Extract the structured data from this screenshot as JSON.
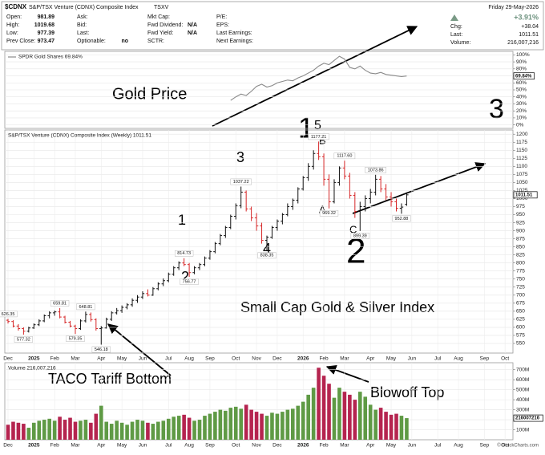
{
  "header": {
    "symbol": "$CDNX",
    "name": "S&P/TSX Venture (CDNX) Composite Index",
    "exchange": "TSXV",
    "date": "Friday 29-May-2026",
    "change_pct": "+3.91%",
    "copyright": "© StockCharts.com",
    "columns": [
      [
        {
          "label": "Open:",
          "value": "981.89"
        },
        {
          "label": "High:",
          "value": "1019.68"
        },
        {
          "label": "Low:",
          "value": "977.39"
        },
        {
          "label": "Prev Close:",
          "value": "973.47"
        }
      ],
      [
        {
          "label": "Ask:"
        },
        {
          "label": "Bid:"
        },
        {
          "label": "Last:"
        },
        {
          "label": "Optionable:",
          "value": "no"
        }
      ],
      [
        {
          "label": "Mkt Cap:"
        },
        {
          "label": "Fwd Dividend:",
          "value": "N/A"
        },
        {
          "label": "Fwd Yield:",
          "value": "N/A"
        },
        {
          "label": "SCTR:"
        }
      ],
      [
        {
          "label": "P/E:"
        },
        {
          "label": "EPS:"
        },
        {
          "label": "Last Earnings:"
        },
        {
          "label": "Next Earnings:"
        }
      ]
    ],
    "quote": [
      {
        "label": "Chg:",
        "value": "+38.04"
      },
      {
        "label": "Last:",
        "value": "1011.51"
      },
      {
        "label": "Volume:",
        "value": "216,007,216"
      }
    ]
  },
  "annotations": [
    "Gold Price",
    "3",
    "1",
    "5",
    "B",
    "A",
    "C",
    "2",
    "3",
    "4",
    "1",
    "2",
    "Small Cap Gold & Silver Index",
    "TACO Tariff Bottom",
    "Blowoff Top"
  ],
  "chart_data": [
    {
      "type": "line",
      "title": "SPDR Gold Shares 69.84%",
      "color": "#8a8a8a",
      "grid": true,
      "last_label": "69.84%",
      "ylim": [
        -5,
        105
      ],
      "yticks": [
        {
          "value": 0,
          "label": "0%"
        },
        {
          "value": 10,
          "label": "10%"
        },
        {
          "value": 20,
          "label": "20%"
        },
        {
          "value": 30,
          "label": "30%"
        },
        {
          "value": 40,
          "label": "40%"
        },
        {
          "value": 50,
          "label": "50%"
        },
        {
          "value": 60,
          "label": "60%"
        },
        {
          "value": 70,
          "label": "70%"
        },
        {
          "value": 80,
          "label": "80%"
        },
        {
          "value": 90,
          "label": "90%"
        },
        {
          "value": 100,
          "label": "100%"
        }
      ],
      "values": [
        null,
        null,
        null,
        null,
        null,
        null,
        null,
        null,
        null,
        null,
        null,
        null,
        null,
        null,
        null,
        null,
        null,
        null,
        null,
        null,
        null,
        null,
        null,
        null,
        null,
        null,
        null,
        null,
        null,
        null,
        null,
        null,
        null,
        null,
        null,
        null,
        null,
        null,
        null,
        null,
        null,
        null,
        null,
        35,
        40,
        44,
        42,
        48,
        55,
        58,
        54,
        56,
        60,
        62,
        64,
        63,
        67,
        70,
        74,
        78,
        84,
        88,
        86,
        92,
        98,
        94,
        82,
        80,
        84,
        78,
        74,
        73,
        75,
        72,
        71,
        70,
        69,
        69.84,
        null,
        null,
        null,
        null,
        null,
        null,
        null,
        null,
        null,
        null,
        null,
        null,
        null,
        null,
        null,
        null,
        null,
        null,
        null,
        null,
        null
      ]
    },
    {
      "type": "ohlc",
      "title": "S&P/TSX Venture (CDNX) Composite Index (Weekly) 1011.51",
      "up_color": "#111111",
      "down_color": "#d62728",
      "grid": true,
      "last_label": "1011.51",
      "ylim": [
        520,
        1213
      ],
      "yticks": [
        550,
        575,
        600,
        625,
        650,
        675,
        700,
        725,
        750,
        775,
        800,
        825,
        850,
        875,
        900,
        925,
        950,
        975,
        1000,
        1025,
        1050,
        1075,
        1100,
        1125,
        1150,
        1175,
        1200
      ],
      "categories": [
        "Dec",
        null,
        null,
        null,
        null,
        "2025",
        null,
        null,
        null,
        "Feb",
        null,
        null,
        null,
        "Mar",
        null,
        null,
        null,
        null,
        "Apr",
        null,
        null,
        null,
        "May",
        null,
        null,
        null,
        "Jun",
        null,
        null,
        null,
        null,
        "Jul",
        null,
        null,
        null,
        "Aug",
        null,
        null,
        null,
        "Sep",
        null,
        null,
        null,
        null,
        "Oct",
        null,
        null,
        null,
        "Nov",
        null,
        null,
        null,
        "Dec",
        null,
        null,
        null,
        null,
        "2026",
        null,
        null,
        null,
        "Feb",
        null,
        null,
        null,
        "Mar",
        null,
        null,
        null,
        null,
        "Apr",
        null,
        null,
        null,
        "May",
        null,
        null,
        null,
        "Jun",
        null,
        null,
        null,
        null,
        "Jul",
        null,
        null,
        null,
        "Aug",
        null,
        null,
        null,
        null,
        "Sep",
        null,
        null,
        null,
        "Oct",
        null,
        null
      ],
      "open": [
        622,
        618,
        604,
        596,
        588,
        598,
        608,
        620,
        636,
        645,
        648,
        632,
        616,
        604,
        596,
        620,
        640,
        624,
        596,
        598,
        625,
        645,
        652,
        662,
        670,
        684,
        694,
        705,
        700,
        720,
        735,
        745,
        765,
        785,
        800,
        795,
        770,
        785,
        795,
        815,
        835,
        860,
        885,
        910,
        945,
        978,
        1020,
        968,
        940,
        915,
        870,
        880,
        910,
        930,
        950,
        975,
        995,
        1030,
        1065,
        1100,
        1140,
        1130,
        1060,
        990,
        1050,
        1095,
        1070,
        1010,
        960,
        975,
        1000,
        1020,
        1060,
        1030,
        1005,
        990,
        970,
        981.89,
        null,
        null,
        null,
        null,
        null,
        null,
        null,
        null,
        null,
        null,
        null,
        null,
        null,
        null,
        null,
        null,
        null,
        null,
        null,
        null,
        null
      ],
      "high": [
        626.35,
        622,
        610,
        600,
        602,
        612,
        625,
        640,
        650,
        652,
        659.81,
        636,
        620,
        608,
        625,
        648.81,
        646,
        628,
        604,
        630,
        650,
        660,
        668,
        675,
        690,
        700,
        712,
        718,
        725,
        740,
        752,
        770,
        790,
        805,
        814.73,
        800,
        790,
        800,
        820,
        840,
        865,
        890,
        915,
        950,
        985,
        1037.22,
        1025,
        975,
        955,
        925,
        885,
        915,
        935,
        955,
        985,
        1000,
        1035,
        1070,
        1110,
        1150,
        1177.21,
        1140,
        1075,
        1060,
        1100,
        1117.6,
        1080,
        1020,
        990,
        1010,
        1030,
        1073.86,
        1070,
        1045,
        1020,
        1000,
        985,
        1019.68,
        null,
        null,
        null,
        null,
        null,
        null,
        null,
        null,
        null,
        null,
        null,
        null,
        null,
        null,
        null,
        null,
        null,
        null,
        null,
        null,
        null
      ],
      "low": [
        612,
        600,
        590,
        577.32,
        584,
        595,
        604,
        616,
        628,
        636,
        628,
        612,
        600,
        579.35,
        592,
        615,
        618,
        590,
        546.18,
        596,
        620,
        640,
        645,
        656,
        664,
        676,
        688,
        696,
        698,
        715,
        728,
        740,
        760,
        778,
        790,
        756.77,
        765,
        778,
        790,
        810,
        830,
        855,
        878,
        905,
        935,
        970,
        960,
        930,
        900,
        860,
        838.35,
        875,
        900,
        920,
        945,
        965,
        985,
        1025,
        1055,
        1090,
        1120,
        1040,
        969.32,
        985,
        1040,
        1060,
        1000,
        940,
        899.39,
        960,
        985,
        1010,
        1020,
        995,
        975,
        960,
        952.88,
        977.39,
        null,
        null,
        null,
        null,
        null,
        null,
        null,
        null,
        null,
        null,
        null,
        null,
        null,
        null,
        null,
        null,
        null,
        null,
        null,
        null,
        null
      ],
      "close": [
        618,
        604,
        596,
        588,
        598,
        608,
        620,
        636,
        645,
        648,
        632,
        616,
        604,
        596,
        620,
        640,
        624,
        596,
        598,
        625,
        645,
        652,
        662,
        670,
        684,
        694,
        705,
        700,
        720,
        735,
        745,
        765,
        785,
        800,
        795,
        770,
        785,
        795,
        815,
        835,
        860,
        885,
        910,
        945,
        978,
        1020,
        968,
        940,
        915,
        870,
        880,
        910,
        930,
        950,
        975,
        995,
        1030,
        1065,
        1100,
        1140,
        1130,
        1060,
        990,
        1050,
        1095,
        1070,
        1010,
        960,
        975,
        1000,
        1020,
        1060,
        1030,
        1005,
        990,
        970,
        973.47,
        1011.51,
        null,
        null,
        null,
        null,
        null,
        null,
        null,
        null,
        null,
        null,
        null,
        null,
        null,
        null,
        null,
        null,
        null,
        null,
        null,
        null,
        null
      ],
      "high_value_labels": [
        "626.35",
        null,
        null,
        null,
        null,
        null,
        null,
        null,
        null,
        null,
        "659.81",
        null,
        null,
        null,
        null,
        "648.81",
        null,
        null,
        null,
        null,
        null,
        null,
        null,
        null,
        null,
        null,
        null,
        null,
        null,
        null,
        null,
        null,
        null,
        null,
        "814.73",
        null,
        null,
        null,
        null,
        null,
        null,
        null,
        null,
        null,
        null,
        "1037.22",
        null,
        null,
        null,
        null,
        null,
        null,
        null,
        null,
        null,
        null,
        null,
        null,
        null,
        null,
        "1177.21",
        null,
        null,
        null,
        null,
        "1117.60",
        null,
        null,
        null,
        null,
        null,
        "1073.86",
        null,
        null,
        null,
        null,
        null,
        null,
        null,
        null,
        null,
        null,
        null,
        null,
        null,
        null,
        null,
        null,
        null,
        null,
        null,
        null,
        null,
        null,
        null,
        null,
        null
      ],
      "low_value_labels": [
        null,
        null,
        null,
        "577.32",
        null,
        null,
        null,
        null,
        null,
        null,
        null,
        null,
        null,
        "579.35",
        null,
        null,
        null,
        null,
        "546.18",
        null,
        null,
        null,
        null,
        null,
        null,
        null,
        null,
        null,
        null,
        null,
        null,
        null,
        null,
        null,
        null,
        "756.77",
        null,
        null,
        null,
        null,
        null,
        null,
        null,
        null,
        null,
        null,
        null,
        null,
        null,
        null,
        "838.35",
        null,
        null,
        null,
        null,
        null,
        null,
        null,
        null,
        null,
        null,
        null,
        "969.32",
        null,
        null,
        null,
        null,
        null,
        "899.39",
        null,
        null,
        null,
        null,
        null,
        null,
        null,
        "952.88",
        null,
        null,
        null,
        null,
        null,
        null,
        null,
        null,
        null,
        null,
        null,
        null,
        null,
        null,
        null,
        null,
        null,
        null,
        null,
        null,
        null,
        null
      ]
    },
    {
      "type": "bar",
      "title": "Volume 216,007,216",
      "up_color": "#5f9a45",
      "down_color": "#b5244f",
      "grid": true,
      "last_label": "216007216",
      "ylim": [
        0,
        770
      ],
      "yticks": [
        {
          "value": 100,
          "label": "100M"
        },
        {
          "value": 200,
          "label": "200M"
        },
        {
          "value": 300,
          "label": "300M"
        },
        {
          "value": 400,
          "label": "400M"
        },
        {
          "value": 500,
          "label": "500M"
        },
        {
          "value": 600,
          "label": "600M"
        },
        {
          "value": 700,
          "label": "700M"
        }
      ],
      "categories": [
        "Dec",
        null,
        null,
        null,
        null,
        "2025",
        null,
        null,
        null,
        "Feb",
        null,
        null,
        null,
        "Mar",
        null,
        null,
        null,
        null,
        "Apr",
        null,
        null,
        null,
        "May",
        null,
        null,
        null,
        "Jun",
        null,
        null,
        null,
        null,
        "Jul",
        null,
        null,
        null,
        "Aug",
        null,
        null,
        null,
        "Sep",
        null,
        null,
        null,
        null,
        "Oct",
        null,
        null,
        null,
        "Nov",
        null,
        null,
        null,
        "Dec",
        null,
        null,
        null,
        null,
        "2026",
        null,
        null,
        null,
        "Feb",
        null,
        null,
        null,
        "Mar",
        null,
        null,
        null,
        null,
        "Apr",
        null,
        null,
        null,
        "May",
        null,
        null,
        null,
        "Jun",
        null,
        null,
        null,
        null,
        "Jul",
        null,
        null,
        null,
        "Aug",
        null,
        null,
        null,
        null,
        "Sep",
        null,
        null,
        null,
        "Oct",
        null,
        null
      ],
      "values": [
        150,
        180,
        170,
        160,
        120,
        170,
        190,
        200,
        210,
        190,
        230,
        200,
        220,
        180,
        190,
        200,
        170,
        260,
        340,
        180,
        160,
        190,
        170,
        150,
        180,
        200,
        190,
        170,
        160,
        180,
        190,
        210,
        230,
        240,
        250,
        220,
        190,
        200,
        240,
        260,
        280,
        300,
        290,
        320,
        330,
        310,
        350,
        300,
        280,
        260,
        240,
        270,
        260,
        280,
        300,
        310,
        340,
        380,
        450,
        520,
        720,
        640,
        560,
        420,
        520,
        480,
        450,
        400,
        480,
        430,
        350,
        300,
        320,
        280,
        250,
        260,
        240,
        216.007216,
        null,
        null,
        null,
        null,
        null,
        null,
        null,
        null,
        null,
        null,
        null,
        null,
        null,
        null,
        null,
        null,
        null,
        null,
        null,
        null,
        null
      ]
    }
  ]
}
